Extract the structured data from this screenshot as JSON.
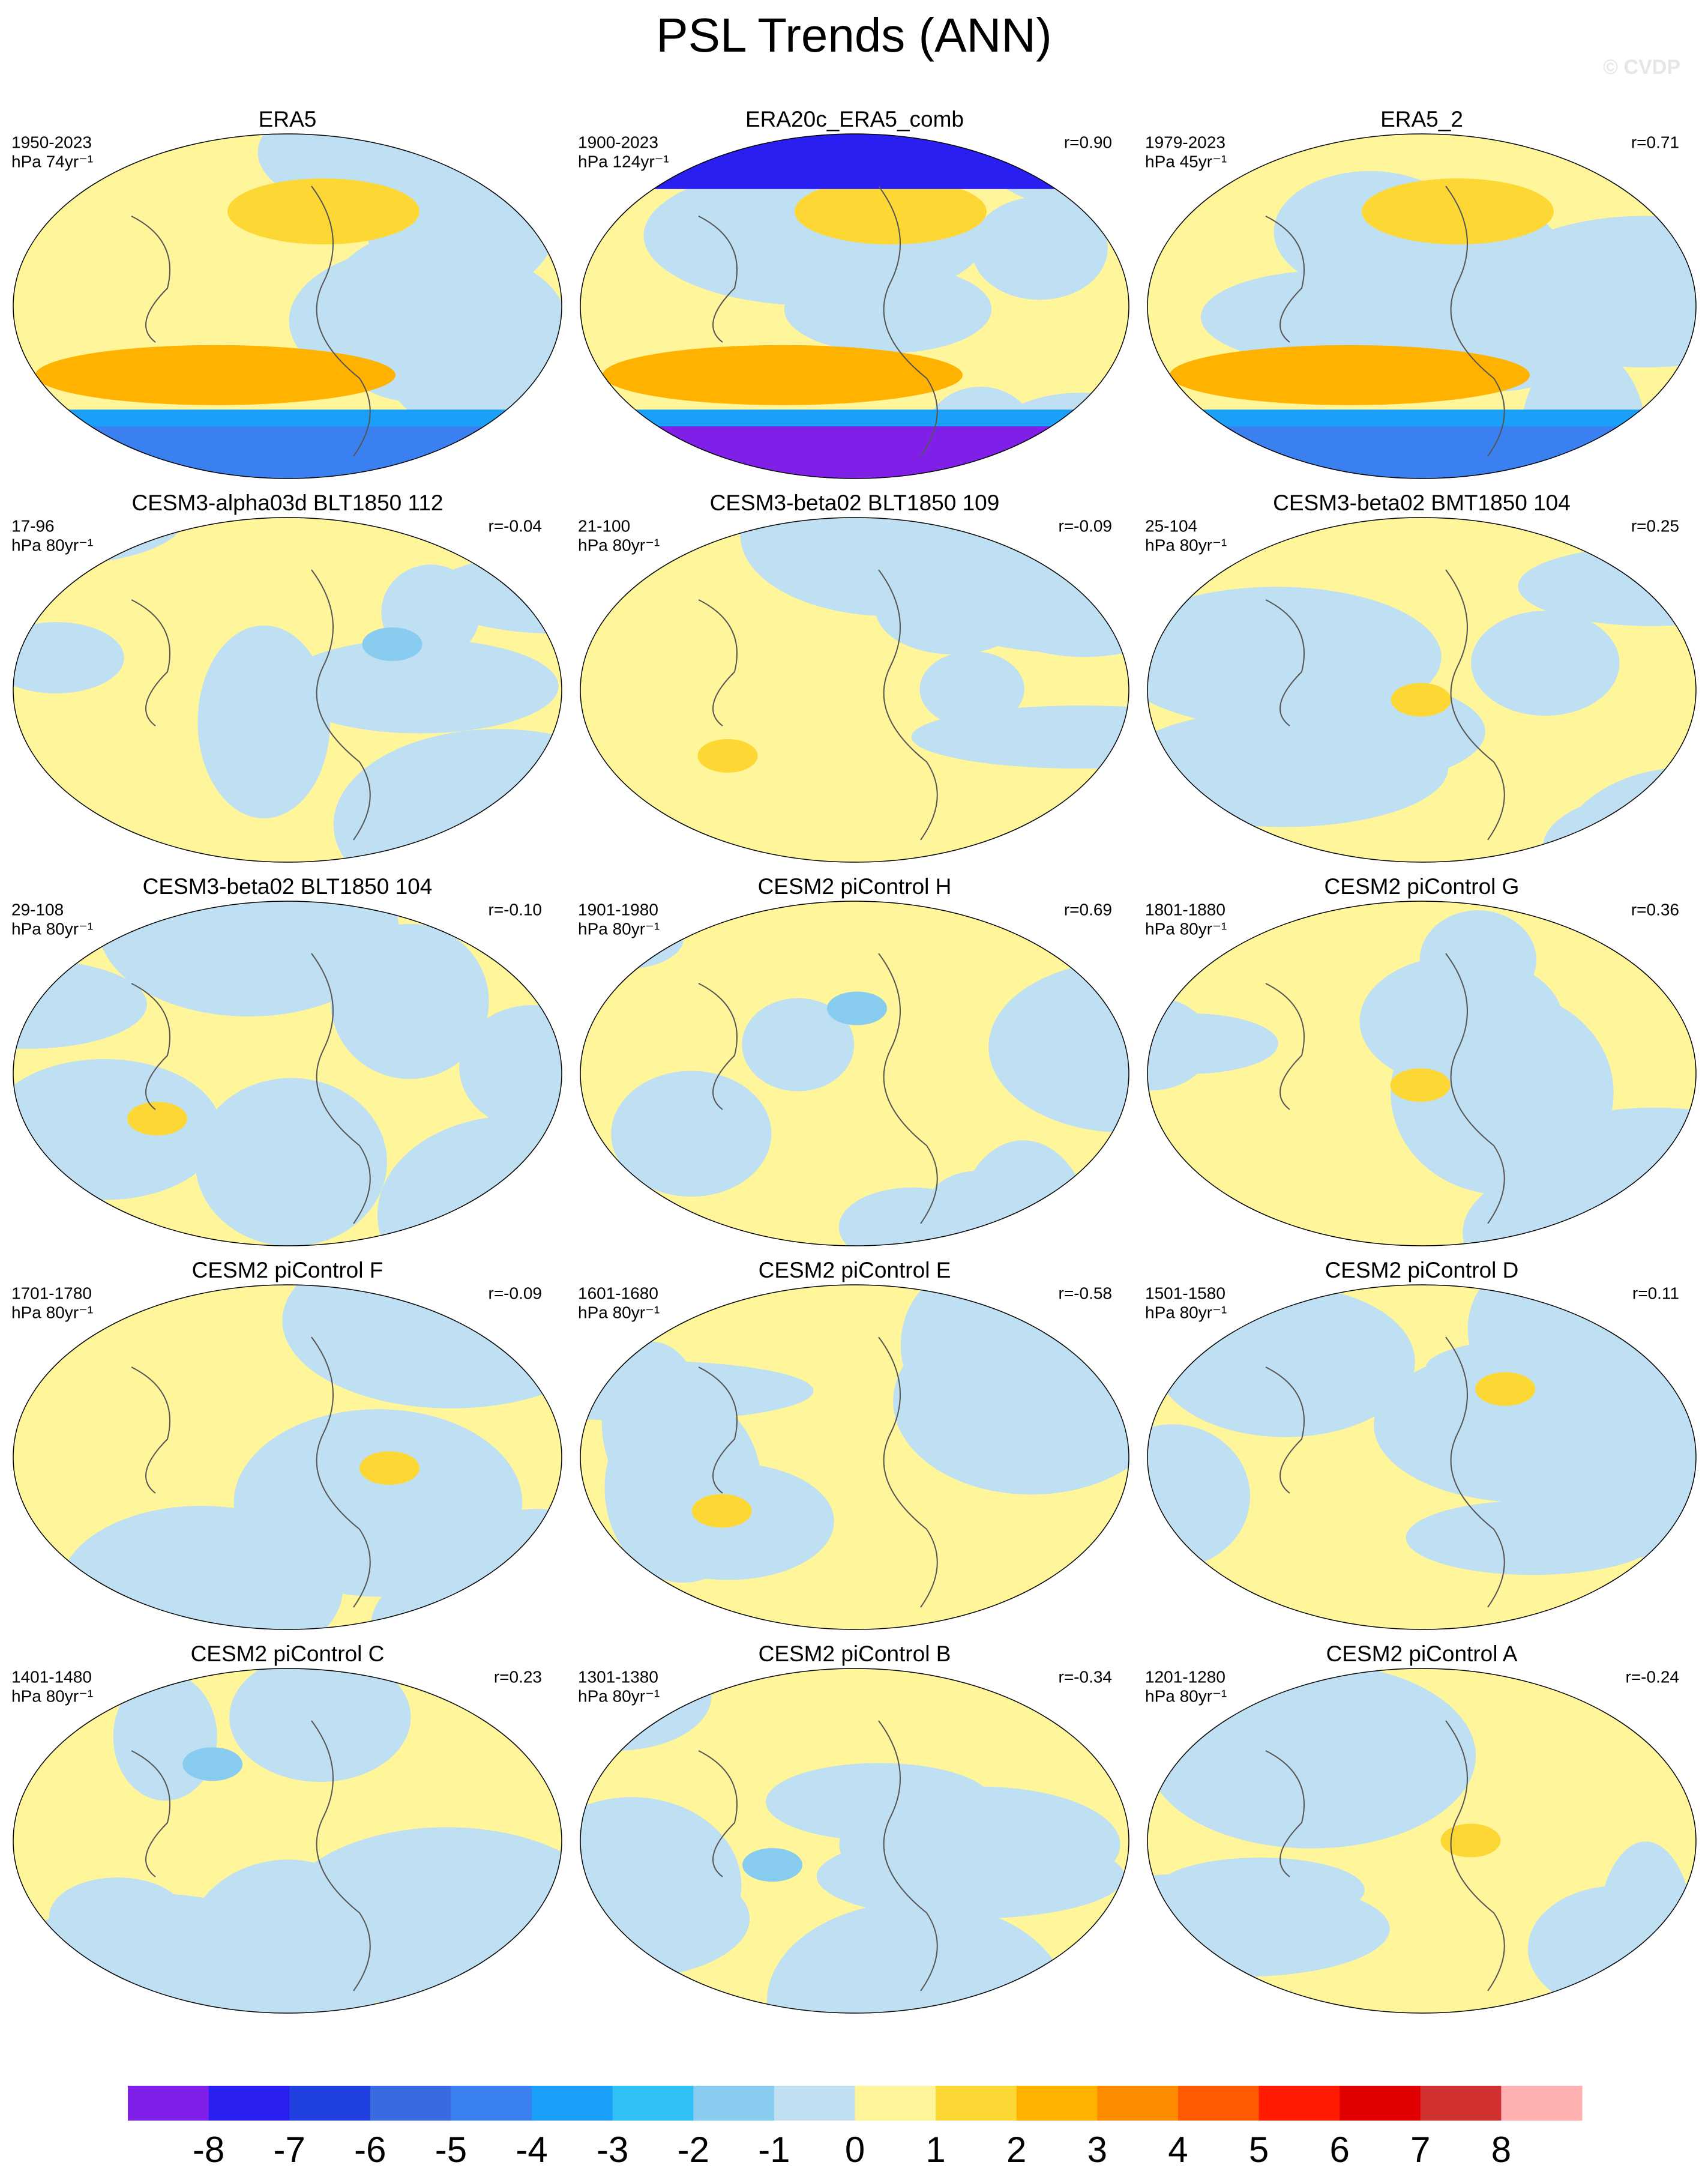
{
  "title": "PSL Trends (ANN)",
  "watermark": "© CVDP",
  "panels": [
    {
      "title": "ERA5",
      "period": "1950-2023",
      "units": "hPa 74yr⁻¹"
    },
    {
      "title": "ERA20c_ERA5_comb",
      "period": "1900-2023",
      "units": "hPa 124yr⁻¹",
      "r": "r=0.90"
    },
    {
      "title": "ERA5_2",
      "period": "1979-2023",
      "units": "hPa 45yr⁻¹",
      "r": "r=0.71"
    },
    {
      "title": "CESM3-alpha03d BLT1850 112",
      "period": "17-96",
      "units": "hPa 80yr⁻¹",
      "r": "r=-0.04"
    },
    {
      "title": "CESM3-beta02 BLT1850 109",
      "period": "21-100",
      "units": "hPa 80yr⁻¹",
      "r": "r=-0.09"
    },
    {
      "title": "CESM3-beta02 BMT1850 104",
      "period": "25-104",
      "units": "hPa 80yr⁻¹",
      "r": "r=0.25"
    },
    {
      "title": "CESM3-beta02 BLT1850 104",
      "period": "29-108",
      "units": "hPa 80yr⁻¹",
      "r": "r=-0.10"
    },
    {
      "title": "CESM2 piControl H",
      "period": "1901-1980",
      "units": "hPa 80yr⁻¹",
      "r": "r=0.69"
    },
    {
      "title": "CESM2 piControl G",
      "period": "1801-1880",
      "units": "hPa 80yr⁻¹",
      "r": "r=0.36"
    },
    {
      "title": "CESM2 piControl F",
      "period": "1701-1780",
      "units": "hPa 80yr⁻¹",
      "r": "r=-0.09"
    },
    {
      "title": "CESM2 piControl E",
      "period": "1601-1680",
      "units": "hPa 80yr⁻¹",
      "r": "r=-0.58"
    },
    {
      "title": "CESM2 piControl D",
      "period": "1501-1580",
      "units": "hPa 80yr⁻¹",
      "r": "r=0.11"
    },
    {
      "title": "CESM2 piControl C",
      "period": "1401-1480",
      "units": "hPa 80yr⁻¹",
      "r": "r=0.23"
    },
    {
      "title": "CESM2 piControl B",
      "period": "1301-1380",
      "units": "hPa 80yr⁻¹",
      "r": "r=-0.34"
    },
    {
      "title": "CESM2 piControl A",
      "period": "1201-1280",
      "units": "hPa 80yr⁻¹",
      "r": "r=-0.24"
    }
  ],
  "colorbar": {
    "ticks": [
      -8,
      -7,
      -6,
      -5,
      -4,
      -3,
      -2,
      -1,
      0,
      1,
      2,
      3,
      4,
      5,
      6,
      7,
      8
    ],
    "colors": [
      "#7f1fe8",
      "#2a1ff0",
      "#2040e0",
      "#3a6ae0",
      "#3a80f0",
      "#1aa0f8",
      "#30c0f8",
      "#88cdf0",
      "#bfe0f2",
      "#fff59a",
      "#fdd835",
      "#ffb300",
      "#ff8c00",
      "#ff5a00",
      "#ff1a00",
      "#e00000",
      "#d03030",
      "#ffb0b0"
    ]
  }
}
